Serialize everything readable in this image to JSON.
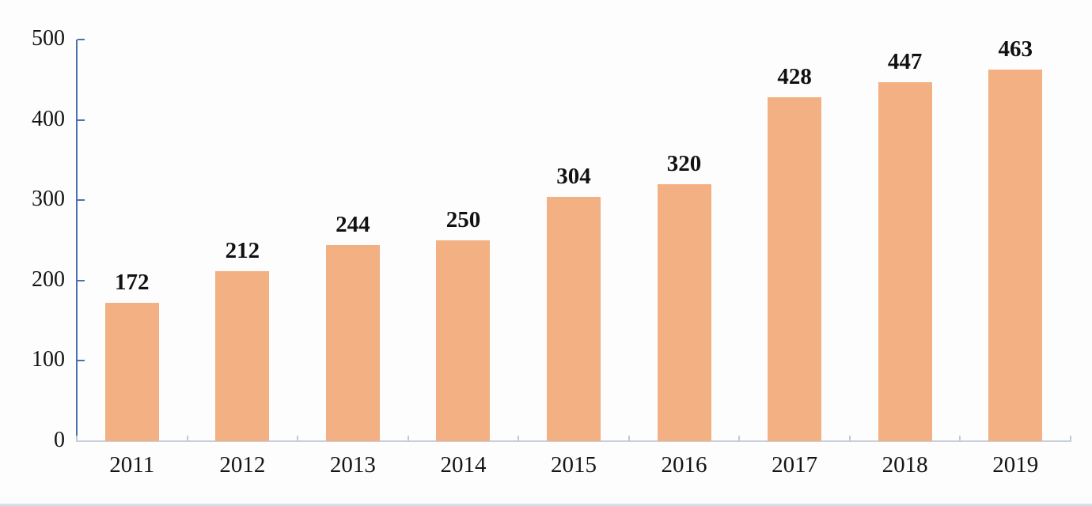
{
  "chart_data": {
    "type": "bar",
    "categories": [
      "2011",
      "2012",
      "2013",
      "2014",
      "2015",
      "2016",
      "2017",
      "2018",
      "2019"
    ],
    "values": [
      172,
      212,
      244,
      250,
      304,
      320,
      428,
      447,
      463
    ],
    "title": "",
    "xlabel": "",
    "ylabel": "",
    "ylim": [
      0,
      500
    ],
    "yticks": [
      0,
      100,
      200,
      300,
      400,
      500
    ],
    "grid": false,
    "legend_position": "none",
    "data_labels": true,
    "colors": {
      "bar_fill": "#F2B083",
      "y_axis_line": "#4F72AE",
      "x_axis_line": "#C9CFD9",
      "x_tick": "#C2C9D4",
      "label_text": "#111111",
      "background": "#FDFDFE",
      "bottom_border": "#D4DFEE"
    }
  }
}
